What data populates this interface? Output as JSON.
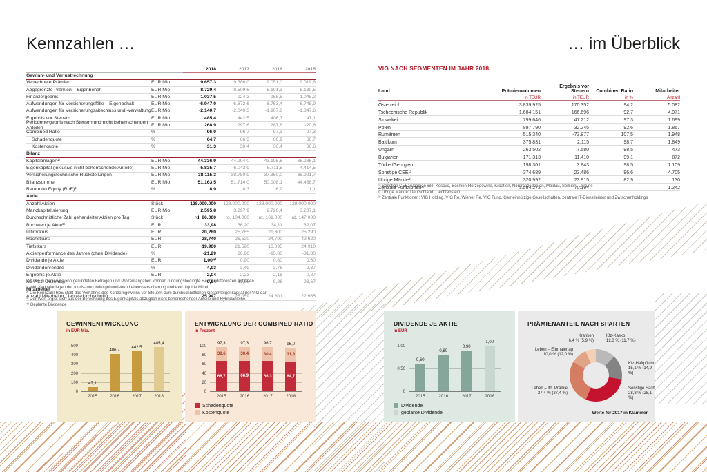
{
  "page": {
    "title_left": "Kennzahlen …",
    "title_right": "… im Überblick"
  },
  "colors": {
    "accent_red": "#b31322",
    "gold_bar": "#c79b3d",
    "gold_bar_light": "#e2cb93",
    "red_bar": "#c22b39",
    "red_bar_light": "#edc3ac",
    "teal_bar": "#87a69b",
    "teal_bar_light": "#c8d7cf"
  },
  "kennzahlen_table": {
    "year_columns": [
      "2018",
      "2017",
      "2016",
      "2015"
    ],
    "sections": [
      {
        "title": "Gewinn- und Verlustrechnung",
        "rows": [
          {
            "label": "Verrechnete Prämien",
            "unit": "EUR Mio.",
            "values": [
              "9.657,3",
              "9.386,0",
              "9.051,0",
              "9.019,8"
            ]
          },
          {
            "label": "Abgegrenzte Prämien – Eigenbehalt",
            "unit": "EUR Mio.",
            "values": [
              "8.729,4",
              "8.509,6",
              "8.191,3",
              "8.180,5"
            ]
          },
          {
            "label": "Finanzergebnis",
            "unit": "EUR Mio.",
            "values": [
              "1.037,5",
              "924,3",
              "958,8",
              "1.048,2"
            ]
          },
          {
            "label": "Aufwendungen für Versicherungsfälle – Eigenbehalt",
            "unit": "EUR Mio.",
            "values": [
              "-6.947,0",
              "-6.872,6",
              "-6.753,4",
              "-6.748,9"
            ]
          },
          {
            "label": "Aufwendungen für Versicherungsabschluss und -verwaltung",
            "unit": "EUR Mio.",
            "values": [
              "-2.140,7",
              "-2.040,3",
              "-1.907,8",
              "-1.847,6"
            ]
          },
          {
            "label": "Ergebnis vor Steuern",
            "unit": "EUR Mio.",
            "values": [
              "485,4",
              "442,5",
              "406,7",
              "47,1"
            ]
          },
          {
            "label": "Periodenergebnis nach Steuern und nicht beherrschenden Anteilen",
            "unit": "EUR Mio.",
            "values": [
              "268,9",
              "297,6",
              "287,6",
              "-20,6"
            ]
          },
          {
            "label": "Combined Ratio",
            "unit": "%",
            "values": [
              "96,0",
              "96,7",
              "97,3",
              "97,3"
            ]
          },
          {
            "label": "Schadenquote",
            "unit": "%",
            "indent": true,
            "values": [
              "64,7",
              "66,3",
              "66,9",
              "66,7"
            ]
          },
          {
            "label": "Kostenquote",
            "unit": "%",
            "indent": true,
            "values": [
              "31,3",
              "30,4",
              "30,4",
              "30,6"
            ]
          }
        ]
      },
      {
        "title": "Bilanz",
        "rows": [
          {
            "label": "Kapitalanlagen¹⁾",
            "unit": "EUR Mio.",
            "values": [
              "44.336,9",
              "44.994,0",
              "43.195,8",
              "38.286,1"
            ]
          },
          {
            "label": "Eigenkapital (inklusive nicht beherrschende Anteile)",
            "unit": "EUR Mio.",
            "values": [
              "5.835,7",
              "6.043,9",
              "5.711,5",
              "4.414,5"
            ]
          },
          {
            "label": "Versicherungstechnische Rückstellungen",
            "unit": "EUR Mio.",
            "values": [
              "38.115,3",
              "38.780,9",
              "37.350,0",
              "35.921,7"
            ]
          },
          {
            "label": "Bilanzsumme",
            "unit": "EUR Mio.",
            "values": [
              "51.163,5",
              "51.714,0",
              "50.008,1",
              "44.488,7"
            ]
          },
          {
            "label": "Return on Equity (RoE)²⁾",
            "unit": "%",
            "values": [
              "8,9",
              "8,3",
              "6,9",
              "1,1"
            ]
          }
        ]
      },
      {
        "title": "Aktie",
        "rows": [
          {
            "label": "Anzahl Aktien",
            "unit": "Stück",
            "values": [
              "128.000.000",
              "128.000.000",
              "128.000.000",
              "128.000.000"
            ]
          },
          {
            "label": "Marktkapitalisierung",
            "unit": "EUR Mio.",
            "values": [
              "2.595,8",
              "3.297,9",
              "2.726,4",
              "3.237,1"
            ]
          },
          {
            "label": "Durchschnittliche Zahl gehandelter Aktien pro Tag",
            "unit": "Stück",
            "values": [
              "rd. 86.000",
              "rd. 104.000",
              "rd. 161.000",
              "rd. 147.000"
            ]
          },
          {
            "label": "Buchwert je Aktie³⁾",
            "unit": "EUR",
            "values": [
              "33,98",
              "36,20",
              "34,11",
              "32,07"
            ]
          },
          {
            "label": "Ultimokurs",
            "unit": "EUR",
            "values": [
              "20,280",
              "25,765",
              "21,300",
              "25,290"
            ]
          },
          {
            "label": "Höchstkurs",
            "unit": "EUR",
            "values": [
              "28,740",
              "26,520",
              "24,790",
              "42,620"
            ]
          },
          {
            "label": "Tiefstkurs",
            "unit": "EUR",
            "values": [
              "19,900",
              "21,590",
              "16,095",
              "24,910"
            ]
          },
          {
            "label": "Aktienperformance des Jahres (ohne Dividende)",
            "unit": "%",
            "values": [
              "-21,29",
              "20,96",
              "-15,80",
              "-31,80"
            ]
          },
          {
            "label": "Dividende je Aktie",
            "unit": "EUR",
            "values": [
              "1,00⁴⁾",
              "0,90",
              "0,80",
              "0,60"
            ]
          },
          {
            "label": "Dividendenrendite",
            "unit": "%",
            "values": [
              "4,93",
              "3,49",
              "3,76",
              "2,37"
            ]
          },
          {
            "label": "Ergebnis je Aktie",
            "unit": "EUR",
            "values": [
              "2,04",
              "2,23",
              "2,16",
              "-0,27"
            ]
          },
          {
            "label": "KGV 31. Dezember",
            "unit": "",
            "values": [
              "9,94",
              "11,55",
              "9,86",
              "-93,67"
            ]
          }
        ]
      },
      {
        "title": "Mitarbeiter",
        "rows": [
          {
            "label": "Anzahl Mitarbeiter (Jahresdurchschnitt)",
            "unit": "",
            "values": [
              "25.947",
              "25.059",
              "24.601",
              "22.965"
            ]
          }
        ]
      }
    ],
    "footnotes": [
      "Bei der Summierung von gerundeten Beträgen und Prozentangaben können rundungsbedingte Rechendifferenzen auftreten.",
      "¹⁾ inkl. Kapitalanlagen der fonds- und indexgebundenen Lebensversicherung und exkl. liquide Mittel",
      "²⁾ Die Kennzahl RoE stellt das Verhältnis des Konzerngewinns vor Steuern zum durchschnittlichen Gesamteigenkapital der VIG dar.",
      "³⁾ Der Wert ergibt sich aus der Berechnung des Eigenkapitals abzüglich nicht beherrschender Anteile und Hybridanleihe.",
      "⁴⁾ Geplante Dividende"
    ]
  },
  "segment_table": {
    "title": "VIG NACH SEGMENTEN IM JAHR 2018",
    "columns": [
      "Land",
      "Prämienvolumen",
      "Ergebnis vor Steuern",
      "Combined Ratio",
      "Mitarbeiter"
    ],
    "subunits": [
      "in TEUR",
      "in TEUR",
      "in %",
      "Anzahl"
    ],
    "rows": [
      [
        "Österreich",
        "3.839.925",
        "170.352",
        "94,2",
        "5.082"
      ],
      [
        "Tschechische Republik",
        "1.684.151",
        "166.696",
        "92,7",
        "4.971"
      ],
      [
        "Slowakei",
        "799.646",
        "47.212",
        "97,3",
        "1.699"
      ],
      [
        "Polen",
        "897.790",
        "32.245",
        "92,6",
        "1.867"
      ],
      [
        "Rumänien",
        "515.340",
        "-73.877",
        "107,5",
        "1.948"
      ],
      [
        "Baltikum",
        "375.831",
        "2.115",
        "98,7",
        "1.849"
      ],
      [
        "Ungarn",
        "263.502",
        "7.580",
        "98,5",
        "473"
      ],
      [
        "Bulgarien",
        "171.313",
        "11.410",
        "99,1",
        "872"
      ],
      [
        "Türkei/Georgien",
        "198.301",
        "3.843",
        "98,5",
        "1.109"
      ],
      [
        "Sonstige CEE¹⁾",
        "374.689",
        "23.486",
        "96,6",
        "4.705"
      ],
      [
        "Übrige Märkte²⁾",
        "320.992",
        "23.915",
        "82,9",
        "130"
      ],
      [
        "Zentrale Funktionen³⁾",
        "1.584.272",
        "70.194",
        "–",
        "1.242"
      ]
    ],
    "footnotes": [
      "¹⁾ Sonstige CEE: Albanien inkl. Kosovo, Bosnien-Herzegowina, Kroatien, Nordmazedonien, Moldau, Serbien, Ukraine",
      "²⁾ Übrige Märkte: Deutschland, Liechtenstein",
      "³⁾ Zentrale Funktionen: VIG Holding, VIG Re, Wiener Re, VIG Fund, Gemeinnützige Gesellschaften, zentrale IT-Dienstleister und Zwischenholdings"
    ]
  },
  "chart_data": [
    {
      "type": "bar",
      "title": "GEWINNENTWICKLUNG",
      "subtitle": "in EUR Mio.",
      "categories": [
        "2015",
        "2016",
        "2017",
        "2018"
      ],
      "values": [
        47.1,
        406.7,
        442.5,
        485.4
      ],
      "value_labels": [
        "47,1",
        "406,7",
        "442,5",
        "485,4"
      ],
      "ylim": [
        0,
        500
      ],
      "yticks": [
        0,
        100,
        200,
        300,
        400,
        500
      ],
      "ytick_labels": [
        "0",
        "100",
        "200",
        "300",
        "400",
        "500"
      ],
      "bar_color": "#c79b3d",
      "last_bar_color": "#e2cb93"
    },
    {
      "type": "bar-stacked",
      "title": "ENTWICKLUNG DER COMBINED RATIO",
      "subtitle": "in Prozent",
      "categories": [
        "2015",
        "2016",
        "2017",
        "2018"
      ],
      "series": [
        {
          "name": "Schadenquote",
          "values": [
            66.7,
            66.9,
            66.3,
            64.7
          ],
          "labels": [
            "66,7",
            "66,9",
            "66,3",
            "64,7"
          ],
          "color": "#c22b39"
        },
        {
          "name": "Kostenquote",
          "values": [
            30.6,
            30.4,
            30.4,
            31.3
          ],
          "labels": [
            "30,6",
            "30,4",
            "30,4",
            "31,3"
          ],
          "color": "#edc3ac"
        }
      ],
      "totals": [
        "97,3",
        "97,3",
        "96,7",
        "96,0"
      ],
      "ylim": [
        0,
        100
      ],
      "yticks": [
        0,
        20,
        40,
        60,
        80,
        100
      ],
      "ytick_labels": [
        "0",
        "20",
        "40",
        "60",
        "80",
        "100"
      ],
      "legend_position": "bottom-left"
    },
    {
      "type": "bar",
      "title": "DIVIDENDE JE AKTIE",
      "subtitle": "in EUR",
      "categories": [
        "2015",
        "2016",
        "2017",
        "2018"
      ],
      "values": [
        0.6,
        0.8,
        0.9,
        1.0
      ],
      "value_labels": [
        "0,60",
        "0,80",
        "0,90",
        "1,00"
      ],
      "ylim": [
        0,
        1.0
      ],
      "yticks": [
        0,
        0.5,
        1.0
      ],
      "ytick_labels": [
        "0",
        "0,50",
        "1,00"
      ],
      "bar_color": "#87a69b",
      "last_bar_color": "#c8d7cf",
      "legend": [
        {
          "label": "Dividende",
          "color": "#87a69b"
        },
        {
          "label": "geplante Dividende",
          "color": "#c8d7cf"
        }
      ]
    },
    {
      "type": "pie",
      "title": "PRÄMIENANTEIL NACH SPARTEN",
      "slices": [
        {
          "label": "Kfz-Kasko",
          "value": 12.3,
          "text": "12,3 % (11,7 %)",
          "color": "#b9b9b9"
        },
        {
          "label": "Kfz-Haftpflicht",
          "value": 15.1,
          "text": "15,1 % (14,9 %)",
          "color": "#848484"
        },
        {
          "label": "Sonstige Sach",
          "value": 28.8,
          "text": "28,8 % (28,1 %)",
          "color": "#c3132f"
        },
        {
          "label": "Leben – lfd. Prämie",
          "value": 27.4,
          "text": "27,4 % (27,4 %)",
          "color": "#d57d63"
        },
        {
          "label": "Leben – Einmalerlag",
          "value": 10.0,
          "text": "10,0 % (12,0 %)",
          "color": "#e2a486"
        },
        {
          "label": "Kranken",
          "value": 6.4,
          "text": "6,4 % (5,9 %)",
          "color": "#f3cfb4"
        }
      ],
      "note": "Werte für 2017 in Klammer"
    }
  ]
}
